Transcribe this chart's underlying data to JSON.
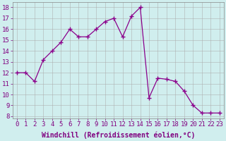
{
  "x": [
    0,
    1,
    2,
    3,
    4,
    5,
    6,
    7,
    8,
    9,
    10,
    11,
    12,
    13,
    14,
    15,
    16,
    17,
    18,
    19,
    20,
    21,
    22,
    23
  ],
  "y": [
    12,
    12,
    11.2,
    13.2,
    14,
    14.8,
    16,
    15.3,
    15.3,
    16,
    16.7,
    17,
    15.3,
    17.2,
    18,
    9.7,
    11.5,
    11.4,
    11.2,
    10.3,
    9,
    8.3,
    8.3,
    8.3
  ],
  "line_color": "#8B008B",
  "marker": "+",
  "marker_size": 4,
  "marker_lw": 1.0,
  "bg_color": "#d0eeee",
  "grid_color": "#aaaaaa",
  "xlabel": "Windchill (Refroidissement éolien,°C)",
  "xlabel_fontsize": 7,
  "ylabel_ticks": [
    8,
    9,
    10,
    11,
    12,
    13,
    14,
    15,
    16,
    17,
    18
  ],
  "xtick_labels": [
    "0",
    "1",
    "2",
    "3",
    "4",
    "5",
    "6",
    "7",
    "8",
    "9",
    "10",
    "11",
    "12",
    "13",
    "14",
    "15",
    "16",
    "17",
    "18",
    "19",
    "20",
    "21",
    "22",
    "23"
  ],
  "xlim": [
    -0.5,
    23.5
  ],
  "ylim": [
    7.8,
    18.5
  ],
  "tick_fontsize": 6.5,
  "line_width": 0.9
}
